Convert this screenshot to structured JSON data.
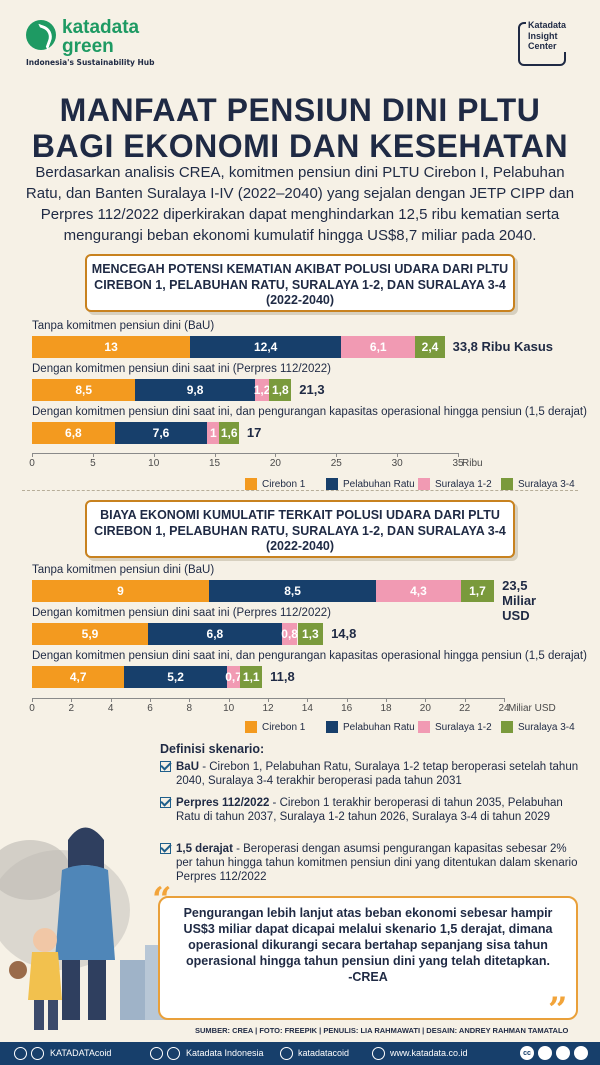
{
  "brand": {
    "logo_name": "katadata\ngreen",
    "logo_tagline": "Indonesia's Sustainability Hub",
    "insight_center": "Katadata\nInsight\nCenter"
  },
  "title": "MANFAAT PENSIUN DINI PLTU BAGI EKONOMI DAN KESEHATAN",
  "subtitle": "Berdasarkan analisis CREA, komitmen pensiun dini PLTU Cirebon I, Pelabuhan Ratu, dan Banten Suralaya I-IV (2022–2040) yang sejalan dengan JETP CIPP dan Perpres 112/2022 diperkirakan dapat menghindarkan 12,5 ribu kematian serta mengurangi beban ekonomi kumulatif hingga US$8,7 miliar pada 2040.",
  "colors": {
    "cirebon1": "#f39a1f",
    "pelabuhan_ratu": "#173f6b",
    "suralaya12": "#f19ab3",
    "suralaya34": "#7a9a3c"
  },
  "chart_data": [
    {
      "type": "bar",
      "orientation": "horizontal-stacked",
      "title": "MENCEGAH POTENSI KEMATIAN AKIBAT POLUSI UDARA DARI PLTU CIREBON 1, PELABUHAN RATU, SURALAYA 1-2, DAN SURALAYA 3-4 (2022-2040)",
      "unit": "Ribu",
      "xlim": [
        0,
        35
      ],
      "ticks": [
        0,
        5,
        10,
        15,
        20,
        25,
        30,
        35
      ],
      "tick_labels": [
        "0",
        "5",
        "10",
        "15",
        "20",
        "25",
        "30",
        "35"
      ],
      "categories": [
        "Tanpa komitmen pensiun dini (BaU)",
        "Dengan komitmen pensiun dini saat ini (Perpres 112/2022)",
        "Dengan komitmen pensiun dini saat ini, dan pengurangan kapasitas operasional hingga pensiun (1,5 derajat)"
      ],
      "series": [
        {
          "name": "Cirebon 1",
          "values": [
            13,
            8.5,
            6.8
          ],
          "labels": [
            "13",
            "8,5",
            "6,8"
          ]
        },
        {
          "name": "Pelabuhan Ratu",
          "values": [
            12.4,
            9.8,
            7.6
          ],
          "labels": [
            "12,4",
            "9,8",
            "7,6"
          ]
        },
        {
          "name": "Suralaya 1-2",
          "values": [
            6.1,
            1.2,
            1
          ],
          "labels": [
            "6,1",
            "1,2",
            "1"
          ]
        },
        {
          "name": "Suralaya 3-4",
          "values": [
            2.4,
            1.8,
            1.6
          ],
          "labels": [
            "2,4",
            "1,8",
            "1,6"
          ]
        }
      ],
      "totals": [
        33.8,
        21.3,
        17
      ],
      "total_labels": [
        "33,8 Ribu Kasus",
        "21,3",
        "17"
      ],
      "legend_position": "bottom-right"
    },
    {
      "type": "bar",
      "orientation": "horizontal-stacked",
      "title": "BIAYA EKONOMI KUMULATIF TERKAIT POLUSI UDARA DARI PLTU CIREBON 1, PELABUHAN RATU, SURALAYA 1-2, DAN SURALAYA 3-4 (2022-2040)",
      "unit": "Miliar USD",
      "xlim": [
        0,
        24
      ],
      "ticks": [
        0,
        2,
        4,
        6,
        8,
        10,
        12,
        14,
        16,
        18,
        20,
        22,
        24
      ],
      "tick_labels": [
        "0",
        "2",
        "4",
        "6",
        "8",
        "10",
        "12",
        "14",
        "16",
        "18",
        "20",
        "22",
        "24"
      ],
      "categories": [
        "Tanpa komitmen pensiun dini (BaU)",
        "Dengan komitmen pensiun dini saat ini (Perpres 112/2022)",
        "Dengan komitmen pensiun dini saat ini, dan pengurangan kapasitas operasional hingga pensiun (1,5 derajat)"
      ],
      "series": [
        {
          "name": "Cirebon 1",
          "values": [
            9,
            5.9,
            4.7
          ],
          "labels": [
            "9",
            "5,9",
            "4,7"
          ]
        },
        {
          "name": "Pelabuhan Ratu",
          "values": [
            8.5,
            6.8,
            5.2
          ],
          "labels": [
            "8,5",
            "6,8",
            "5,2"
          ]
        },
        {
          "name": "Suralaya 1-2",
          "values": [
            4.3,
            0.8,
            0.7
          ],
          "labels": [
            "4,3",
            "0,8",
            "0,7"
          ]
        },
        {
          "name": "Suralaya 3-4",
          "values": [
            1.7,
            1.3,
            1.1
          ],
          "labels": [
            "1,7",
            "1,3",
            "1,1"
          ]
        }
      ],
      "totals": [
        23.5,
        14.8,
        11.8
      ],
      "total_labels": [
        "23,5 Miliar USD",
        "14,8",
        "11,8"
      ],
      "legend_position": "bottom-right"
    }
  ],
  "definitions": {
    "title": "Definisi skenario:",
    "items": [
      {
        "key": "BaU",
        "text": " - Cirebon 1, Pelabuhan Ratu, Suralaya 1-2 tetap beroperasi setelah tahun 2040, Suralaya 3-4 terakhir beroperasi pada tahun 2031"
      },
      {
        "key": "Perpres 112/2022",
        "text": " - Cirebon 1 terakhir beroperasi di tahun 2035, Pelabuhan Ratu di tahun 2037, Suralaya 1-2 tahun 2026, Suralaya 3-4 di tahun 2029"
      },
      {
        "key": "1,5 derajat",
        "text": " - Beroperasi dengan asumsi pengurangan kapasitas sebesar 2% per tahun hingga tahun komitmen pensiun dini yang ditentukan dalam skenario Perpres 112/2022"
      }
    ]
  },
  "quote": {
    "text": "Pengurangan lebih lanjut atas beban ekonomi sebesar hampir US$3 miliar dapat dicapai melalui skenario 1,5 derajat, dimana operasional dikurangi secara bertahap sepanjang sisa tahun operasional hingga tahun pensiun dini yang telah ditetapkan.",
    "author": "-CREA",
    "open_mark": "“",
    "close_mark": "”"
  },
  "source": "SUMBER: CREA | FOTO: FREEPIK | PENULIS: LIA RAHMAWATI | DESAIN: ANDREY RAHMAN TAMATALO",
  "footer": {
    "handle1": "KATADATAcoid",
    "handle2": "Katadata Indonesia",
    "handle3": "katadatacoid",
    "website": "www.katadata.co.id",
    "cc": "cc"
  }
}
